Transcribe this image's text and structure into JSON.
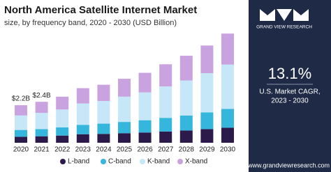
{
  "chart_data": {
    "type": "bar",
    "stacked": true,
    "title": "North America Satellite Internet Market",
    "subtitle": "size, by frequency band, 2020 - 2030 (USD Billion)",
    "categories": [
      "2020",
      "2021",
      "2022",
      "2023",
      "2024",
      "2025",
      "2026",
      "2027",
      "2028",
      "2029",
      "2030"
    ],
    "series": [
      {
        "name": "L-band",
        "color": "#2b1a4a",
        "values": [
          0.35,
          0.38,
          0.42,
          0.5,
          0.52,
          0.56,
          0.6,
          0.66,
          0.72,
          0.8,
          0.88
        ]
      },
      {
        "name": "C-band",
        "color": "#35b6dc",
        "values": [
          0.4,
          0.42,
          0.48,
          0.55,
          0.6,
          0.66,
          0.72,
          0.8,
          0.88,
          0.98,
          1.1
        ]
      },
      {
        "name": "K-band",
        "color": "#c5e7f7",
        "values": [
          0.85,
          0.95,
          1.05,
          1.25,
          1.33,
          1.48,
          1.63,
          1.84,
          2.05,
          2.3,
          2.6
        ]
      },
      {
        "name": "X-band",
        "color": "#c9a3e0",
        "values": [
          0.6,
          0.65,
          0.75,
          0.9,
          0.95,
          1.05,
          1.15,
          1.3,
          1.45,
          1.62,
          1.82
        ]
      }
    ],
    "annotations": [
      {
        "category": "2020",
        "label": "$2.2B"
      },
      {
        "category": "2021",
        "label": "$2.4B"
      }
    ]
  },
  "panel": {
    "brand": "GRAND VIEW RESEARCH",
    "cagr": "13.1%",
    "cagr_label": "U.S. Market CAGR,",
    "period": "2023 - 2030",
    "source": "Source: www.grandviewresearch.com"
  }
}
